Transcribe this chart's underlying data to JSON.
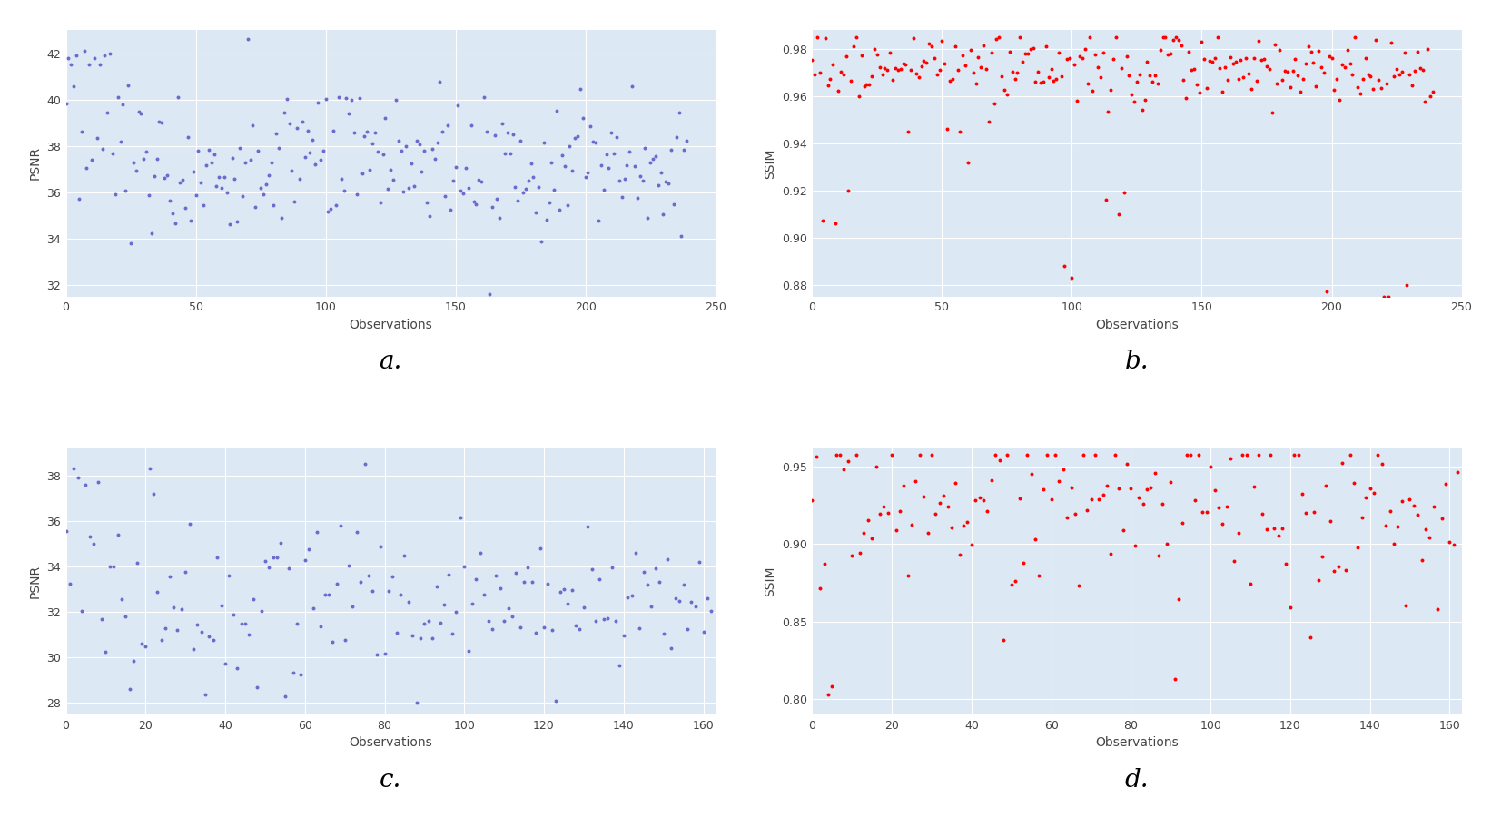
{
  "fig_bg_color": "#ffffff",
  "plot_bg_color": "#dce9f5",
  "blue_color": "#6b6bcc",
  "red_color": "#ff0000",
  "marker_size": 8,
  "subplot_label_fontsize": 20,
  "axis_label_fontsize": 10,
  "tick_fontsize": 9,
  "n_cgan": 240,
  "n_wgan": 163,
  "cgan_psnr_xlim": [
    0,
    250
  ],
  "cgan_psnr_ylim": [
    31.5,
    43.0
  ],
  "cgan_psnr_yticks": [
    32,
    34,
    36,
    38,
    40,
    42
  ],
  "cgan_psnr_xticks": [
    0,
    50,
    100,
    150,
    200,
    250
  ],
  "cgan_ssim_xlim": [
    0,
    250
  ],
  "cgan_ssim_ylim": [
    0.875,
    0.988
  ],
  "cgan_ssim_yticks": [
    0.88,
    0.9,
    0.92,
    0.94,
    0.96,
    0.98
  ],
  "cgan_ssim_xticks": [
    0,
    50,
    100,
    150,
    200,
    250
  ],
  "wgan_psnr_xlim": [
    0,
    163
  ],
  "wgan_psnr_ylim": [
    27.5,
    39.2
  ],
  "wgan_psnr_yticks": [
    28,
    30,
    32,
    34,
    36,
    38
  ],
  "wgan_psnr_xticks": [
    0,
    20,
    40,
    60,
    80,
    100,
    120,
    140,
    160
  ],
  "wgan_ssim_xlim": [
    0,
    163
  ],
  "wgan_ssim_ylim": [
    0.79,
    0.962
  ],
  "wgan_ssim_yticks": [
    0.8,
    0.85,
    0.9,
    0.95
  ],
  "wgan_ssim_xticks": [
    0,
    20,
    40,
    60,
    80,
    100,
    120,
    140,
    160
  ]
}
